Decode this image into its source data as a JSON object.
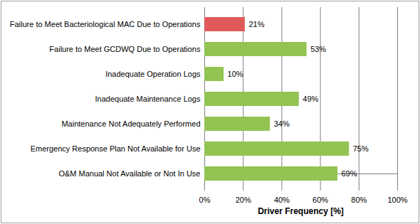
{
  "chart_data": {
    "type": "bar",
    "orientation": "horizontal",
    "x_label": "Driver Frequency [%]",
    "categories": [
      "Failure to Meet Bacteriological MAC Due to Operations",
      "Failure to Meet GCDWQ Due to Operations",
      "Inadequate Operation Logs",
      "Inadequate Maintenance Logs",
      "Maintenance Not Adequately Performed",
      "Emergency Response Plan Not Available for Use",
      "O&M Manual Not Available or Not In Use"
    ],
    "values": [
      21,
      53,
      10,
      49,
      34,
      75,
      69
    ],
    "value_labels": [
      "21%",
      "53%",
      "10%",
      "49%",
      "34%",
      "75%",
      "69%"
    ],
    "colors": [
      "#e05a5a",
      "#92c353",
      "#92c353",
      "#92c353",
      "#92c353",
      "#92c353",
      "#92c353"
    ],
    "xlim": [
      0,
      100
    ],
    "xticks": [
      {
        "value": 0,
        "label": "0%"
      },
      {
        "value": 20,
        "label": "20%"
      },
      {
        "value": 40,
        "label": "40%"
      },
      {
        "value": 60,
        "label": "60%"
      },
      {
        "value": 80,
        "label": "80%"
      },
      {
        "value": 100,
        "label": "100%"
      }
    ],
    "grid": true,
    "data_labels": true
  }
}
